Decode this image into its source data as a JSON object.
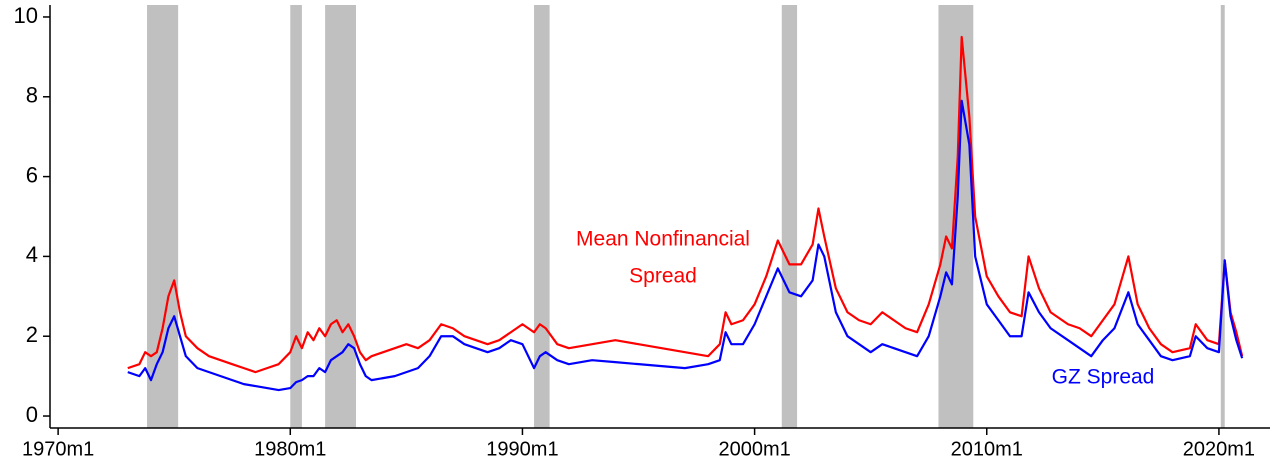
{
  "chart_data": {
    "type": "line",
    "annotations": [
      "Mean Nonfinancial",
      "Spread"
    ],
    "x": [
      1973.0,
      1973.5,
      1973.75,
      1974.0,
      1974.25,
      1974.5,
      1974.75,
      1975.0,
      1975.25,
      1975.5,
      1976.0,
      1976.5,
      1977.0,
      1977.5,
      1978.0,
      1978.5,
      1979.0,
      1979.5,
      1980.0,
      1980.25,
      1980.5,
      1980.75,
      1981.0,
      1981.25,
      1981.5,
      1981.75,
      1982.0,
      1982.25,
      1982.5,
      1982.75,
      1983.0,
      1983.25,
      1983.5,
      1984.0,
      1984.5,
      1985.0,
      1985.5,
      1986.0,
      1986.5,
      1987.0,
      1987.5,
      1988.0,
      1988.5,
      1989.0,
      1989.5,
      1990.0,
      1990.5,
      1990.75,
      1991.0,
      1991.5,
      1992.0,
      1993.0,
      1994.0,
      1995.0,
      1996.0,
      1997.0,
      1998.0,
      1998.5,
      1998.75,
      1999.0,
      1999.5,
      2000.0,
      2000.5,
      2001.0,
      2001.5,
      2002.0,
      2002.5,
      2002.75,
      2003.0,
      2003.5,
      2004.0,
      2004.5,
      2005.0,
      2005.5,
      2006.0,
      2006.5,
      2007.0,
      2007.5,
      2008.0,
      2008.25,
      2008.5,
      2008.75,
      2008.92,
      2009.25,
      2009.5,
      2010.0,
      2010.5,
      2011.0,
      2011.5,
      2011.8,
      2012.25,
      2012.75,
      2013.5,
      2014.0,
      2014.5,
      2015.0,
      2015.5,
      2016.1,
      2016.5,
      2017.0,
      2017.5,
      2018.0,
      2018.75,
      2019.0,
      2019.5,
      2020.0,
      2020.25,
      2020.5,
      2020.75,
      2021.0
    ],
    "series": [
      {
        "color": "#ff0000",
        "values": [
          1.2,
          1.3,
          1.6,
          1.5,
          1.6,
          2.2,
          3.0,
          3.4,
          2.6,
          2.0,
          1.7,
          1.5,
          1.4,
          1.3,
          1.2,
          1.1,
          1.2,
          1.3,
          1.6,
          2.0,
          1.7,
          2.1,
          1.9,
          2.2,
          2.0,
          2.3,
          2.4,
          2.1,
          2.3,
          2.0,
          1.6,
          1.4,
          1.5,
          1.6,
          1.7,
          1.8,
          1.7,
          1.9,
          2.3,
          2.2,
          2.0,
          1.9,
          1.8,
          1.9,
          2.1,
          2.3,
          2.1,
          2.3,
          2.2,
          1.8,
          1.7,
          1.8,
          1.9,
          1.8,
          1.7,
          1.6,
          1.5,
          1.8,
          2.6,
          2.3,
          2.4,
          2.8,
          3.5,
          4.4,
          3.8,
          3.8,
          4.3,
          5.2,
          4.5,
          3.2,
          2.6,
          2.4,
          2.3,
          2.6,
          2.4,
          2.2,
          2.1,
          2.8,
          3.8,
          4.5,
          4.2,
          6.5,
          9.5,
          7.5,
          5.0,
          3.5,
          3.0,
          2.6,
          2.5,
          4.0,
          3.2,
          2.6,
          2.3,
          2.2,
          2.0,
          2.4,
          2.8,
          4.0,
          2.8,
          2.2,
          1.8,
          1.6,
          1.7,
          2.3,
          1.9,
          1.8,
          3.9,
          2.6,
          2.1,
          1.5
        ]
      },
      {
        "name": "GZ Spread",
        "color": "#0000ff",
        "values": [
          1.1,
          1.0,
          1.2,
          0.9,
          1.3,
          1.6,
          2.2,
          2.5,
          2.0,
          1.5,
          1.2,
          1.1,
          1.0,
          0.9,
          0.8,
          0.75,
          0.7,
          0.65,
          0.7,
          0.85,
          0.9,
          1.0,
          1.0,
          1.2,
          1.1,
          1.4,
          1.5,
          1.6,
          1.8,
          1.7,
          1.3,
          1.0,
          0.9,
          0.95,
          1.0,
          1.1,
          1.2,
          1.5,
          2.0,
          2.0,
          1.8,
          1.7,
          1.6,
          1.7,
          1.9,
          1.8,
          1.2,
          1.5,
          1.6,
          1.4,
          1.3,
          1.4,
          1.35,
          1.3,
          1.25,
          1.2,
          1.3,
          1.4,
          2.1,
          1.8,
          1.8,
          2.3,
          3.0,
          3.7,
          3.1,
          3.0,
          3.4,
          4.3,
          4.0,
          2.6,
          2.0,
          1.8,
          1.6,
          1.8,
          1.7,
          1.6,
          1.5,
          2.0,
          3.0,
          3.6,
          3.3,
          5.5,
          7.9,
          6.8,
          4.0,
          2.8,
          2.4,
          2.0,
          2.0,
          3.1,
          2.6,
          2.2,
          1.9,
          1.7,
          1.5,
          1.9,
          2.2,
          3.1,
          2.3,
          1.9,
          1.5,
          1.4,
          1.5,
          2.0,
          1.7,
          1.6,
          3.9,
          2.5,
          1.9,
          1.45
        ]
      }
    ],
    "shaded_periods": [
      [
        1973.83,
        1975.17
      ],
      [
        1980.0,
        1980.5
      ],
      [
        1981.5,
        1982.83
      ],
      [
        1990.5,
        1991.17
      ],
      [
        2001.17,
        2001.83
      ],
      [
        2007.92,
        2009.42
      ],
      [
        2020.08,
        2020.25
      ]
    ],
    "shade_color": "#c0c0c0",
    "xlim": [
      1969.65,
      2022.2
    ],
    "xticks": [
      {
        "value": 1970,
        "label": "1970m1"
      },
      {
        "value": 1980,
        "label": "1980m1"
      },
      {
        "value": 1990,
        "label": "1990m1"
      },
      {
        "value": 2000,
        "label": "2000m1"
      },
      {
        "value": 2010,
        "label": "2010m1"
      },
      {
        "value": 2020,
        "label": "2020m1"
      }
    ],
    "ylim": [
      -0.3,
      10.3
    ],
    "yticks": [
      0,
      2,
      4,
      6,
      8,
      10
    ]
  }
}
